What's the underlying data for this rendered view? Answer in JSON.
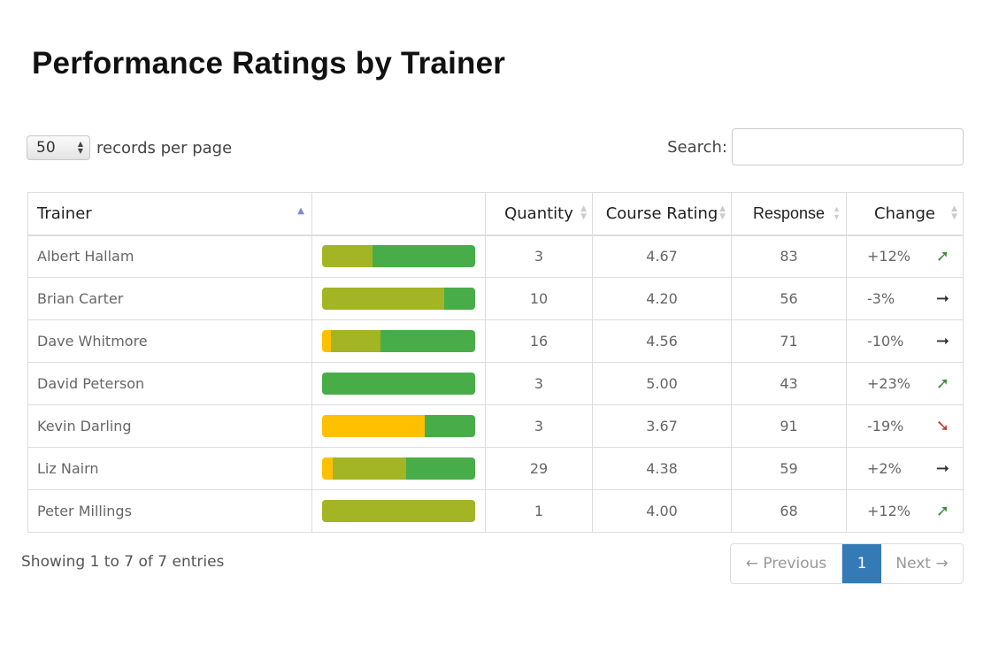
{
  "title": "Performance Ratings by Trainer",
  "length": {
    "value": "50",
    "label": "records per page"
  },
  "search": {
    "label": "Search:",
    "value": ""
  },
  "columns": {
    "trainer": "Trainer",
    "bar": "",
    "quantity": "Quantity",
    "course_rating": "Course Rating",
    "response": "Response",
    "change": "Change"
  },
  "colors": {
    "yellow": "#ffc000",
    "olive": "#a3b424",
    "green": "#48ad48",
    "up": "#3c8a3c",
    "down": "#c0392b",
    "flat": "#333333",
    "pager_active": "#337ab7"
  },
  "rows": [
    {
      "trainer": "Albert Hallam",
      "quantity": "3",
      "rating": "4.67",
      "response": "83",
      "change": "+12%",
      "trend": "up",
      "bar": {
        "yellow": 0,
        "olive": 0.33,
        "green": 0.67
      }
    },
    {
      "trainer": "Brian Carter",
      "quantity": "10",
      "rating": "4.20",
      "response": "56",
      "change": "-3%",
      "trend": "flat",
      "bar": {
        "yellow": 0,
        "olive": 0.8,
        "green": 0.2
      }
    },
    {
      "trainer": "Dave Whitmore",
      "quantity": "16",
      "rating": "4.56",
      "response": "71",
      "change": "-10%",
      "trend": "flat",
      "bar": {
        "yellow": 0.06,
        "olive": 0.32,
        "green": 0.62
      }
    },
    {
      "trainer": "David Peterson",
      "quantity": "3",
      "rating": "5.00",
      "response": "43",
      "change": "+23%",
      "trend": "up",
      "bar": {
        "yellow": 0,
        "olive": 0,
        "green": 1.0
      }
    },
    {
      "trainer": "Kevin Darling",
      "quantity": "3",
      "rating": "3.67",
      "response": "91",
      "change": "-19%",
      "trend": "down",
      "bar": {
        "yellow": 0.67,
        "olive": 0,
        "green": 0.33
      }
    },
    {
      "trainer": "Liz Nairn",
      "quantity": "29",
      "rating": "4.38",
      "response": "59",
      "change": "+2%",
      "trend": "flat",
      "bar": {
        "yellow": 0.07,
        "olive": 0.48,
        "green": 0.45
      }
    },
    {
      "trainer": "Peter Millings",
      "quantity": "1",
      "rating": "4.00",
      "response": "68",
      "change": "+12%",
      "trend": "up",
      "bar": {
        "yellow": 0,
        "olive": 1.0,
        "green": 0
      }
    }
  ],
  "info": "Showing 1 to 7 of 7 entries",
  "pager": {
    "prev": "← Previous",
    "current": "1",
    "next": "Next →"
  }
}
